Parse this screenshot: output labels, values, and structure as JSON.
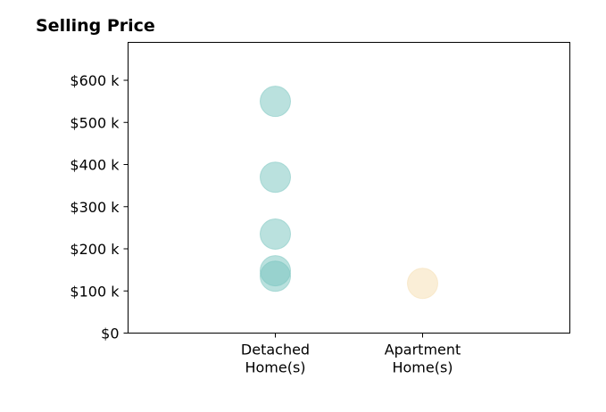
{
  "chart_data": {
    "type": "scatter",
    "title": "Selling Price",
    "xlabel": "",
    "ylabel": "",
    "categories": [
      [
        "Detached",
        "Home(s)"
      ],
      [
        "Apartment",
        "Home(s)"
      ]
    ],
    "xlim": [
      0,
      3
    ],
    "ylim": [
      0,
      690
    ],
    "y_ticks": [
      0,
      100,
      200,
      300,
      400,
      500,
      600
    ],
    "y_tick_labels": [
      "$0",
      "$100 k",
      "$200 k",
      "$300 k",
      "$400 k",
      "$500 k",
      "$600 k"
    ],
    "grid": false,
    "legend": "none",
    "series": [
      {
        "category_index": 0,
        "color": "#76c3bd",
        "values": [
          550,
          370,
          235,
          148,
          135
        ]
      },
      {
        "category_index": 1,
        "color": "#f5deb0",
        "values": [
          118
        ]
      }
    ]
  }
}
